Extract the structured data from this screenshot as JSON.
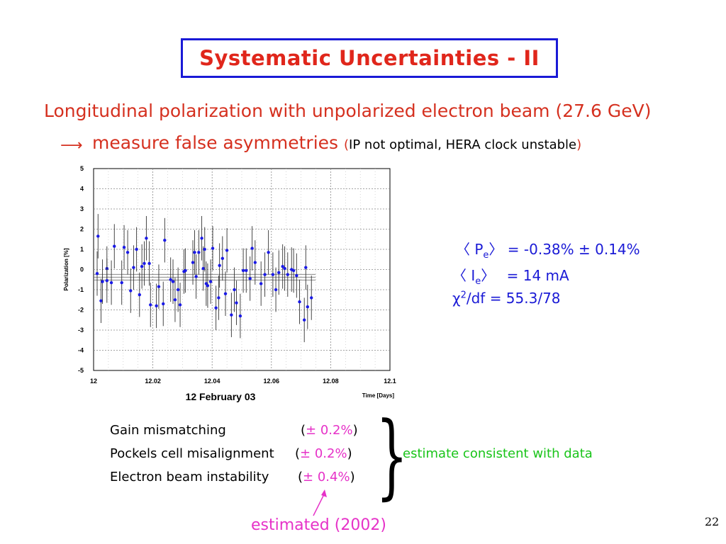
{
  "title": "Systematic Uncertainties - II",
  "subtitle": "Longitudinal polarization with unpolarized electron beam (27.6 GeV)",
  "asymmetry": {
    "text": "measure false asymmetries",
    "open_paren": "(",
    "note": "IP not optimal, HERA clock unstable",
    "close_paren": ")"
  },
  "stats": {
    "pe_label": "〈 Pe 〉",
    "pe_value": "= -0.38% ± 0.14%",
    "ie_label": "〈 Ie 〉",
    "ie_value": "= 14 mA",
    "chi_label": "χ2/df",
    "chi_value": "= 55.3/78"
  },
  "systematics": [
    {
      "label": "Gain mismatching",
      "value": "± 0.2%"
    },
    {
      "label": "Pockels cell misalignment",
      "value": "± 0.2%"
    },
    {
      "label": "Electron beam instability",
      "value": "± 0.4%"
    }
  ],
  "consistent_note": "estimate consistent with data",
  "estimated_note": "estimated (2002)",
  "page_number": "22",
  "colors": {
    "title_border": "#1a1ad6",
    "title": "#e0261b",
    "red": "#d5301f",
    "blue": "#1a1ad6",
    "pink": "#e632c8",
    "green": "#19c419",
    "points": "#1a1ae6"
  },
  "chart_data": {
    "type": "scatter",
    "title": "12 February 03",
    "xlabel": "Time [Days]",
    "ylabel": "Polarization [%]",
    "xlim": [
      12,
      12.1
    ],
    "ylim": [
      -5,
      5
    ],
    "x_ticks": [
      "12",
      "12.02",
      "12.04",
      "12.06",
      "12.08",
      "12.1"
    ],
    "y_ticks": [
      "5",
      "4",
      "3",
      "2",
      "1",
      "0",
      "-1",
      "-2",
      "-3",
      "-4",
      "-5"
    ],
    "grid": true,
    "fit_band": [
      -0.52,
      -0.24
    ],
    "points": [
      {
        "x": 12.0012,
        "y": -0.2,
        "err": 1.1
      },
      {
        "x": 12.0015,
        "y": 1.65,
        "err": 1.1
      },
      {
        "x": 12.0025,
        "y": -1.55,
        "err": 1.1
      },
      {
        "x": 12.003,
        "y": -0.6,
        "err": 1.1
      },
      {
        "x": 12.0045,
        "y": 0.05,
        "err": 1.1
      },
      {
        "x": 12.0045,
        "y": -0.55,
        "err": 1.1
      },
      {
        "x": 12.006,
        "y": -0.65,
        "err": 1.1
      },
      {
        "x": 12.007,
        "y": 1.15,
        "err": 1.1
      },
      {
        "x": 12.0095,
        "y": -0.65,
        "err": 1.1
      },
      {
        "x": 12.0103,
        "y": 1.1,
        "err": 1.1
      },
      {
        "x": 12.0115,
        "y": 0.85,
        "err": 1.1
      },
      {
        "x": 12.0125,
        "y": -1.05,
        "err": 1.1
      },
      {
        "x": 12.0135,
        "y": 0.1,
        "err": 1.1
      },
      {
        "x": 12.0145,
        "y": 1.0,
        "err": 1.1
      },
      {
        "x": 12.0155,
        "y": -1.25,
        "err": 1.1
      },
      {
        "x": 12.0163,
        "y": 0.15,
        "err": 1.1
      },
      {
        "x": 12.0171,
        "y": 0.3,
        "err": 1.1
      },
      {
        "x": 12.0178,
        "y": 1.55,
        "err": 1.1
      },
      {
        "x": 12.0188,
        "y": 0.3,
        "err": 1.1
      },
      {
        "x": 12.0192,
        "y": -1.75,
        "err": 1.1
      },
      {
        "x": 12.0212,
        "y": -1.8,
        "err": 1.1
      },
      {
        "x": 12.022,
        "y": -0.85,
        "err": 1.1
      },
      {
        "x": 12.0235,
        "y": -1.7,
        "err": 1.1
      },
      {
        "x": 12.024,
        "y": 1.45,
        "err": 1.1
      },
      {
        "x": 12.026,
        "y": -0.5,
        "err": 1.1
      },
      {
        "x": 12.0268,
        "y": -0.6,
        "err": 1.1
      },
      {
        "x": 12.0275,
        "y": -1.5,
        "err": 1.1
      },
      {
        "x": 12.0285,
        "y": -1.0,
        "err": 1.1
      },
      {
        "x": 12.0292,
        "y": -1.75,
        "err": 1.1
      },
      {
        "x": 12.0305,
        "y": -0.1,
        "err": 1.1
      },
      {
        "x": 12.031,
        "y": -0.05,
        "err": 1.1
      },
      {
        "x": 12.0335,
        "y": 0.35,
        "err": 1.1
      },
      {
        "x": 12.0341,
        "y": 0.85,
        "err": 1.1
      },
      {
        "x": 12.0346,
        "y": -0.35,
        "err": 1.1
      },
      {
        "x": 12.0355,
        "y": 0.85,
        "err": 1.1
      },
      {
        "x": 12.0365,
        "y": 1.55,
        "err": 1.1
      },
      {
        "x": 12.037,
        "y": 0.05,
        "err": 1.1
      },
      {
        "x": 12.0375,
        "y": 1.0,
        "err": 1.1
      },
      {
        "x": 12.038,
        "y": -0.7,
        "err": 1.1
      },
      {
        "x": 12.0385,
        "y": -0.8,
        "err": 1.1
      },
      {
        "x": 12.0395,
        "y": -0.6,
        "err": 1.1
      },
      {
        "x": 12.0402,
        "y": 1.05,
        "err": 1.1
      },
      {
        "x": 12.0413,
        "y": -1.9,
        "err": 1.1
      },
      {
        "x": 12.0422,
        "y": -1.4,
        "err": 1.1
      },
      {
        "x": 12.0425,
        "y": 0.2,
        "err": 1.1
      },
      {
        "x": 12.0435,
        "y": 0.55,
        "err": 1.1
      },
      {
        "x": 12.0445,
        "y": -1.2,
        "err": 1.1
      },
      {
        "x": 12.045,
        "y": 0.95,
        "err": 1.1
      },
      {
        "x": 12.0465,
        "y": -2.25,
        "err": 1.1
      },
      {
        "x": 12.0475,
        "y": -1.0,
        "err": 1.1
      },
      {
        "x": 12.0482,
        "y": -1.65,
        "err": 1.1
      },
      {
        "x": 12.0495,
        "y": -2.3,
        "err": 1.1
      },
      {
        "x": 12.0505,
        "y": -0.05,
        "err": 1.1
      },
      {
        "x": 12.0515,
        "y": -0.05,
        "err": 1.1
      },
      {
        "x": 12.0528,
        "y": -0.45,
        "err": 1.1
      },
      {
        "x": 12.0535,
        "y": 1.05,
        "err": 1.1
      },
      {
        "x": 12.0545,
        "y": 0.35,
        "err": 1.1
      },
      {
        "x": 12.0565,
        "y": -0.7,
        "err": 1.1
      },
      {
        "x": 12.0578,
        "y": -0.25,
        "err": 1.1
      },
      {
        "x": 12.059,
        "y": 0.85,
        "err": 1.1
      },
      {
        "x": 12.0605,
        "y": -0.25,
        "err": 1.1
      },
      {
        "x": 12.0615,
        "y": -1.0,
        "err": 1.1
      },
      {
        "x": 12.0625,
        "y": -0.15,
        "err": 1.1
      },
      {
        "x": 12.0638,
        "y": 0.15,
        "err": 1.1
      },
      {
        "x": 12.0645,
        "y": 0.05,
        "err": 1.1
      },
      {
        "x": 12.0655,
        "y": -0.25,
        "err": 1.1
      },
      {
        "x": 12.0668,
        "y": 0.0,
        "err": 1.1
      },
      {
        "x": 12.0675,
        "y": -0.05,
        "err": 1.1
      },
      {
        "x": 12.0685,
        "y": -0.3,
        "err": 1.1
      },
      {
        "x": 12.0695,
        "y": -1.6,
        "err": 1.1
      },
      {
        "x": 12.0711,
        "y": -2.5,
        "err": 1.1
      },
      {
        "x": 12.0716,
        "y": 0.1,
        "err": 1.1
      },
      {
        "x": 12.0722,
        "y": -1.85,
        "err": 1.1
      },
      {
        "x": 12.0735,
        "y": -1.4,
        "err": 1.1
      }
    ]
  }
}
